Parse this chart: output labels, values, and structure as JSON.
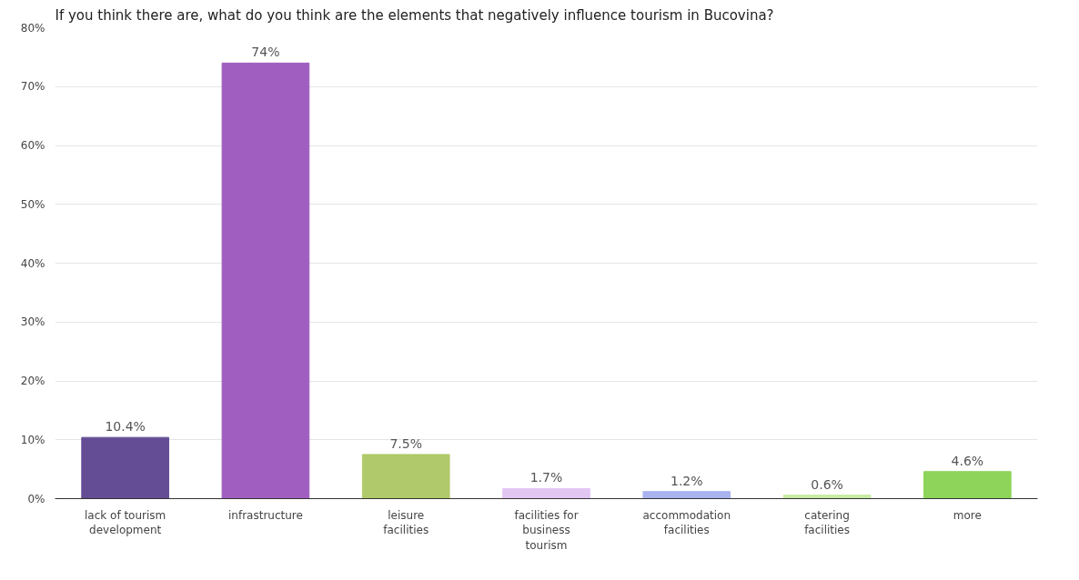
{
  "chart_data": {
    "type": "bar",
    "title": "If you think there are, what do you think are the elements that negatively influence tourism in Bucovina?",
    "categories": [
      "lack of tourism development",
      "infrastructure",
      "leisure facilities",
      "facilities for business tourism",
      "accommodation facilities",
      "catering facilities",
      "more"
    ],
    "values": [
      10.4,
      74,
      7.5,
      1.7,
      1.2,
      0.6,
      4.6
    ],
    "colors": [
      "#644d94",
      "#a05fc0",
      "#b0c96a",
      "#e2c6f2",
      "#a9b3f0",
      "#c8eca2",
      "#8fd45a"
    ],
    "value_labels": [
      "10.4%",
      "74%",
      "7.5%",
      "1.7%",
      "1.2%",
      "0.6%",
      "4.6%"
    ],
    "ylim": [
      0,
      80
    ],
    "yticks": [
      {
        "value": 0,
        "label": "0%"
      },
      {
        "value": 10,
        "label": "10%"
      },
      {
        "value": 20,
        "label": "20%"
      },
      {
        "value": 30,
        "label": "30%"
      },
      {
        "value": 40,
        "label": "40%"
      },
      {
        "value": 50,
        "label": "50%"
      },
      {
        "value": 60,
        "label": "60%"
      },
      {
        "value": 70,
        "label": "70%"
      },
      {
        "value": 80,
        "label": "80%"
      }
    ],
    "grid": "y"
  }
}
